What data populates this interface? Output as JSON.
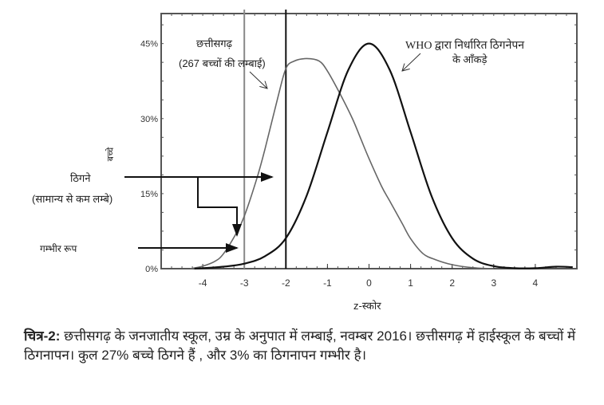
{
  "chart_data": {
    "type": "line",
    "title": "",
    "xlabel": "z-स्कोर",
    "ylabel": "बच्चे",
    "xlim": [
      -5,
      5
    ],
    "ylim": [
      0,
      51
    ],
    "x_ticks": [
      "-4",
      "-3",
      "-2",
      "-1",
      "0",
      "1",
      "2",
      "3",
      "4"
    ],
    "y_ticks": [
      "0%",
      "15%",
      "30%",
      "45%"
    ],
    "x_tick_values": [
      -4,
      -3,
      -2,
      -1,
      0,
      1,
      2,
      3,
      4
    ],
    "y_tick_values": [
      0,
      15,
      30,
      45
    ],
    "vertical_lines": [
      {
        "x": -3,
        "color": "#888888"
      },
      {
        "x": -2,
        "color": "#111111"
      }
    ],
    "series": [
      {
        "name": "छत्तीसगढ़ (267 बच्चों की लम्बाई)",
        "color": "#666666",
        "x": [
          -4.3,
          -4.0,
          -3.7,
          -3.5,
          -3.2,
          -3.0,
          -2.7,
          -2.5,
          -2.2,
          -2.0,
          -1.8,
          -1.5,
          -1.2,
          -1.0,
          -0.7,
          -0.4,
          -0.2,
          0.0,
          0.3,
          0.5,
          0.8,
          1.0,
          1.3,
          1.6,
          2.0,
          2.5,
          3.0
        ],
        "y": [
          0,
          0.5,
          1.5,
          3,
          7,
          10.5,
          18,
          24,
          34,
          40,
          41.5,
          42,
          41.5,
          39.5,
          35,
          30,
          26,
          22,
          16.5,
          13.5,
          9,
          6,
          3,
          1.8,
          0.8,
          0.2,
          0
        ]
      },
      {
        "name": "WHO द्वारा निर्धारित ठिगनेपन के आँकड़े",
        "color": "#111111",
        "x": [
          -4.2,
          -3.5,
          -3.0,
          -2.5,
          -2.0,
          -1.5,
          -1.0,
          -0.5,
          0.0,
          0.5,
          1.0,
          1.5,
          2.0,
          2.5,
          3.0,
          3.5,
          4.0,
          4.5,
          4.9
        ],
        "y": [
          0,
          0.4,
          1.0,
          2.5,
          6.1,
          14.6,
          27.3,
          39.7,
          45,
          39.7,
          27.3,
          14.6,
          6.1,
          2.0,
          0.5,
          0.1,
          0.1,
          0.4,
          0.3
        ]
      }
    ],
    "annotations": {
      "chhattisgarh_line1": "छत्तीसगढ़",
      "chhattisgarh_line2": "(267 बच्चों की लम्बाई)",
      "who_line1": "WHO द्वारा निर्धारित ठिगनेपन",
      "who_line2": "के आँकड़े",
      "stunted_line1": "ठिगने",
      "stunted_line2": "(सामान्य से कम लम्बे)",
      "severe": "गम्भीर रूप"
    },
    "grid": false,
    "legend": "none"
  },
  "caption": {
    "label": "चित्र-2:",
    "text": " छत्तीसगढ़ के जनजातीय स्कूल, उम्र के अनुपात में लम्बाई, नवम्बर 2016। छत्तीसगढ़ में हाईस्कूल के बच्चों में ठिगनापन। कुल 27% बच्चे ठिगने हैं , और 3% का ठिगनापन गम्भीर है।"
  }
}
